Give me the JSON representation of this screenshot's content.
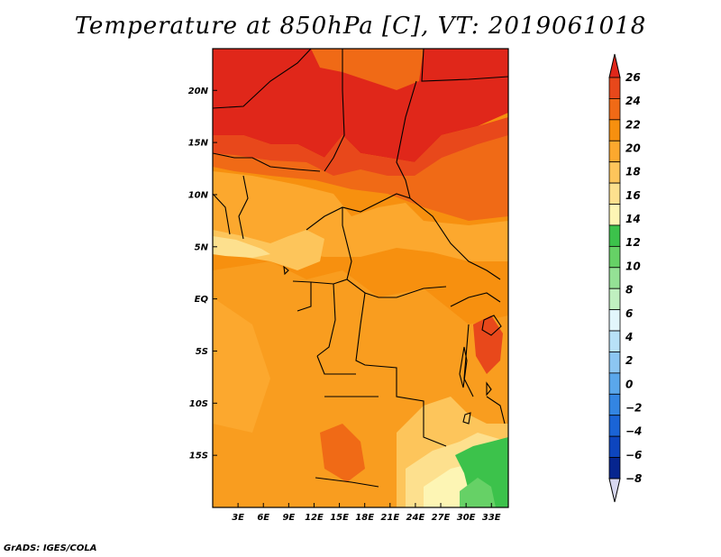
{
  "title": "Temperature at 850hPa [C], VT: 2019061018",
  "credit": "GrADS: IGES/COLA",
  "map": {
    "variable": "Temperature at 850hPa",
    "units": "C",
    "valid_time": "2019061018",
    "lon_range": [
      0,
      35
    ],
    "lat_range": [
      -20,
      24
    ],
    "lat_ticks": [
      {
        "value": 20,
        "label": "20N"
      },
      {
        "value": 15,
        "label": "15N"
      },
      {
        "value": 10,
        "label": "10N"
      },
      {
        "value": 5,
        "label": "5N"
      },
      {
        "value": 0,
        "label": "EQ"
      },
      {
        "value": -5,
        "label": "5S"
      },
      {
        "value": -10,
        "label": "10S"
      },
      {
        "value": -15,
        "label": "15S"
      }
    ],
    "lon_ticks": [
      {
        "value": 3,
        "label": "3E"
      },
      {
        "value": 6,
        "label": "6E"
      },
      {
        "value": 9,
        "label": "9E"
      },
      {
        "value": 12,
        "label": "12E"
      },
      {
        "value": 15,
        "label": "15E"
      },
      {
        "value": 18,
        "label": "18E"
      },
      {
        "value": 21,
        "label": "21E"
      },
      {
        "value": 24,
        "label": "24E"
      },
      {
        "value": 27,
        "label": "27E"
      },
      {
        "value": 30,
        "label": "30E"
      },
      {
        "value": 33,
        "label": "33E"
      }
    ]
  },
  "colorbar": {
    "levels": [
      26,
      24,
      22,
      20,
      18,
      16,
      14,
      12,
      10,
      8,
      6,
      4,
      2,
      0,
      -2,
      -4,
      -6,
      -8
    ],
    "labels": [
      "26",
      "24",
      "22",
      "20",
      "18",
      "16",
      "14",
      "12",
      "10",
      "8",
      "6",
      "4",
      "2",
      "0",
      "−2",
      "−4",
      "−6",
      "−8"
    ],
    "colors_top_to_bottom": [
      "#e0271a",
      "#e8481b",
      "#f06a16",
      "#f7900f",
      "#fca82e",
      "#fdc55b",
      "#fde08e",
      "#fdf5b4",
      "#3cc24b",
      "#66d166",
      "#94e195",
      "#c0f0c0",
      "#e2f6fc",
      "#b8e1f7",
      "#8cc6f2",
      "#5aa7eb",
      "#3385e2",
      "#1a64d6",
      "#0d45be",
      "#06258f",
      "#d8d8f0"
    ]
  },
  "regions": [
    {
      "name": "north-hot-band",
      "color": "#e0271a"
    },
    {
      "name": "sahel-band",
      "color": "#f06a16"
    },
    {
      "name": "central-mid",
      "color": "#f7900f"
    },
    {
      "name": "gulf-guinea-cool",
      "color": "#fdc55b"
    },
    {
      "name": "southeast-cool",
      "color": "#fde08e"
    },
    {
      "name": "southeast-green",
      "color": "#3cc24b"
    }
  ]
}
